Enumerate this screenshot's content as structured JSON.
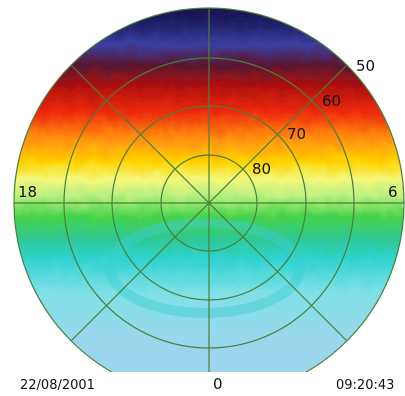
{
  "plot": {
    "latitude_labels": [
      "50",
      "60",
      "70",
      "80"
    ],
    "mlt_labels": {
      "left": "18",
      "right": "6",
      "bottom": "0"
    },
    "date": "22/08/2001",
    "time": "09:20:43"
  }
}
